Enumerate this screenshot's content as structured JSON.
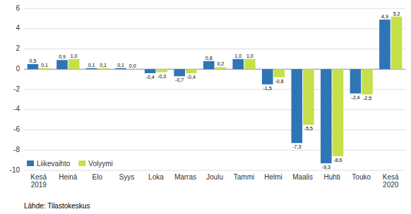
{
  "chart_data": {
    "type": "bar",
    "categories": [
      "Kesä\n2019",
      "Heinä",
      "Elo",
      "Syys",
      "Loka",
      "Marras",
      "Joulu",
      "Tammi",
      "Helmi",
      "Maalis",
      "Huhti",
      "Touko",
      "Kesä\n2020"
    ],
    "series": [
      {
        "name": "Liikevaihto",
        "color": "#2E75B6",
        "values": [
          0.5,
          0.9,
          0.1,
          0.1,
          -0.4,
          -0.7,
          0.8,
          1.0,
          -1.5,
          -7.3,
          -9.3,
          -2.4,
          4.9
        ],
        "value_labels": [
          "0,5",
          "0,9",
          "0,1",
          "0,1",
          "-0,4",
          "-0,7",
          "0,8",
          "1,0",
          "-1,5",
          "-7,3",
          "-9,3",
          "-2,4",
          "4,9"
        ]
      },
      {
        "name": "Volyymi",
        "color": "#C5E04A",
        "values": [
          0.1,
          1.0,
          0.1,
          0.0,
          -0.3,
          -0.4,
          0.2,
          1.0,
          -0.8,
          -5.5,
          -8.6,
          -2.5,
          5.2
        ],
        "value_labels": [
          "0,1",
          "1,0",
          "0,1",
          "0,0",
          "-0,3",
          "-0,4",
          "0,2",
          "1,0",
          "-0,8",
          "-5,5",
          "-8,6",
          "-2,5",
          "5,2"
        ]
      }
    ],
    "ylim": [
      -10,
      6
    ],
    "yticks": [
      -10,
      -8,
      -6,
      -4,
      -2,
      0,
      2,
      4,
      6
    ],
    "grid": true,
    "legend": "lower left",
    "data_labels": true,
    "annotations": [
      "Lähde: Tilastokeskus"
    ]
  }
}
